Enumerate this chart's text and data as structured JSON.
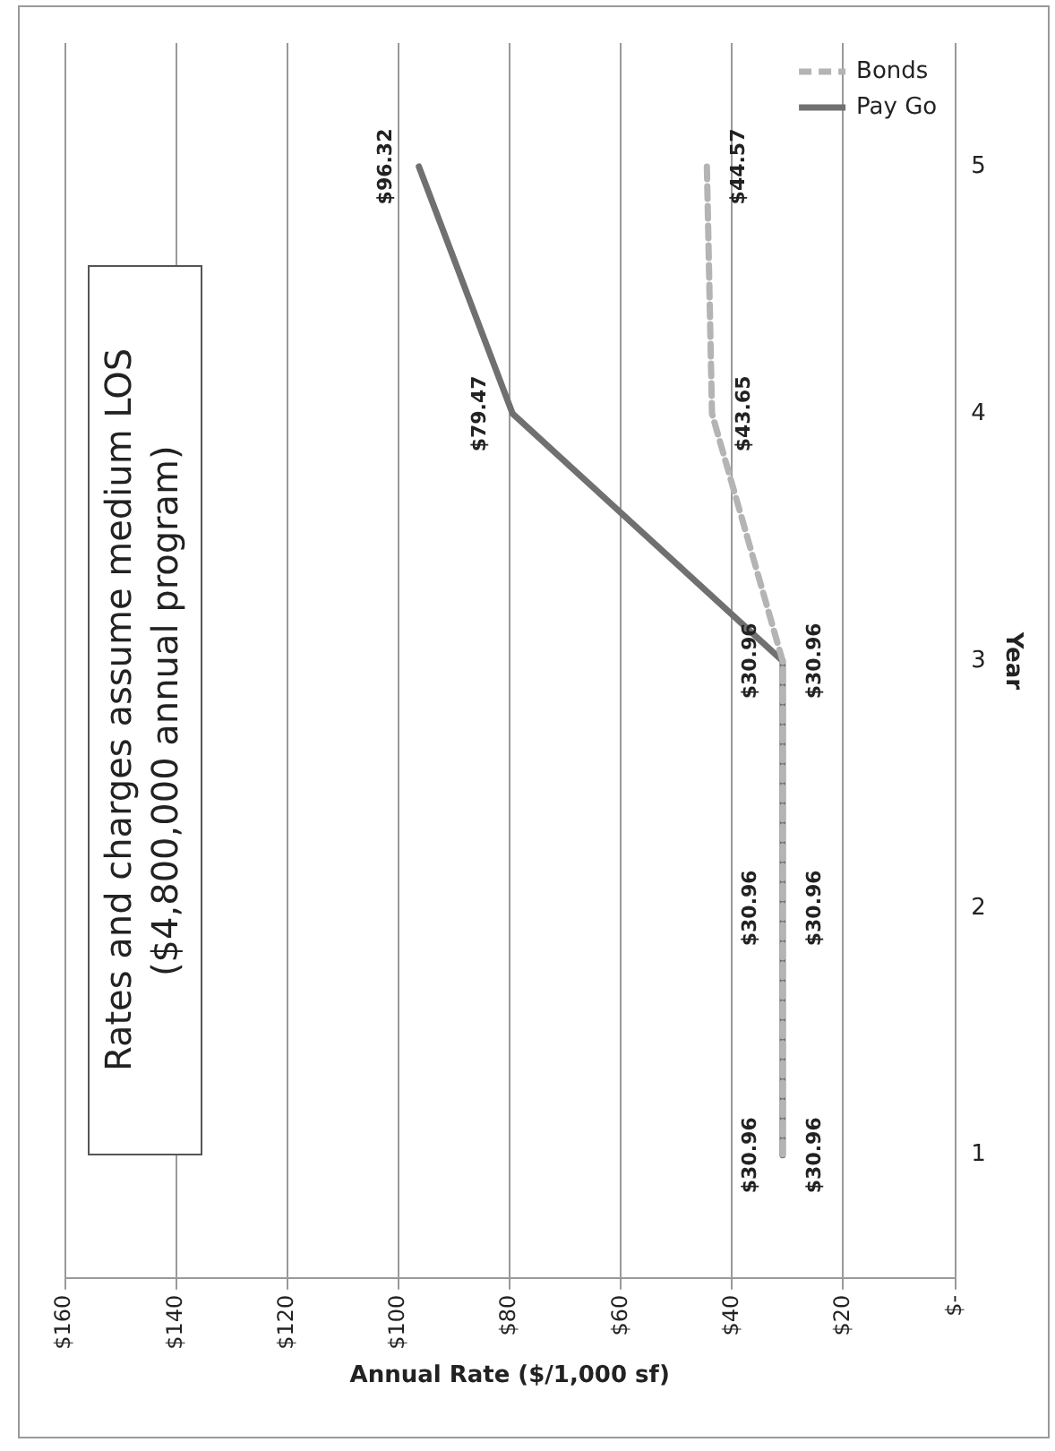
{
  "chart_data": {
    "type": "line",
    "orientation": "horizontal",
    "categories": [
      "5",
      "4",
      "3",
      "2",
      "1"
    ],
    "xlabel": "Annual Rate ($/1,000 sf)",
    "ylabel": "Year",
    "xlim": [
      160,
      0
    ],
    "xticks": [
      {
        "value": 160,
        "label": "$160"
      },
      {
        "value": 140,
        "label": "$140"
      },
      {
        "value": 120,
        "label": "$120"
      },
      {
        "value": 100,
        "label": "$100"
      },
      {
        "value": 80,
        "label": "$80"
      },
      {
        "value": 60,
        "label": "$60"
      },
      {
        "value": 40,
        "label": "$40"
      },
      {
        "value": 20,
        "label": "$20"
      },
      {
        "value": 0,
        "label": "$-"
      }
    ],
    "series": [
      {
        "name": "Bonds",
        "color": "#b4b4b4",
        "line_style": "dashed",
        "values": [
          44.57,
          43.65,
          30.96,
          30.96,
          30.96
        ],
        "value_labels": [
          "$44.57",
          "$43.65",
          "$30.96",
          "$30.96",
          "$30.96"
        ]
      },
      {
        "name": "Pay Go",
        "color": "#707070",
        "line_style": "solid",
        "values": [
          96.32,
          79.47,
          30.96,
          30.96,
          30.96
        ],
        "value_labels": [
          "$96.32",
          "$79.47",
          "$30.96",
          "$30.96",
          "$30.96"
        ]
      }
    ],
    "annotations": [
      "Rates and charges assume medium LOS ($4,800,000 annual program)"
    ],
    "grid": "x",
    "legend": "top right",
    "marker": "none"
  }
}
